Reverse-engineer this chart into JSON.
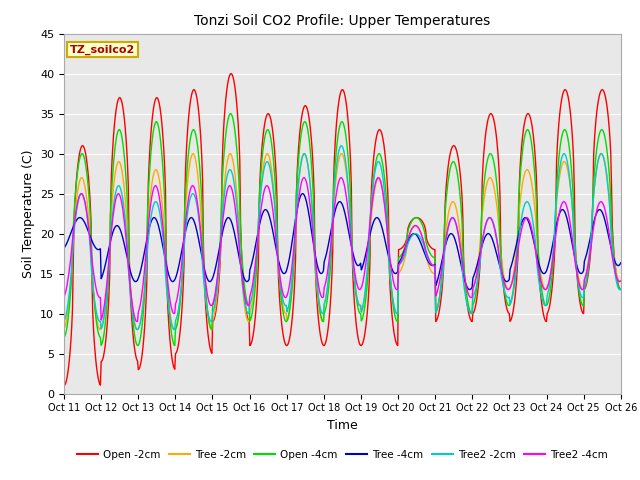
{
  "title": "Tonzi Soil CO2 Profile: Upper Temperatures",
  "xlabel": "Time",
  "ylabel": "Soil Temperature (C)",
  "ylim": [
    0,
    45
  ],
  "ytick_values": [
    0,
    5,
    10,
    15,
    20,
    25,
    30,
    35,
    40,
    45
  ],
  "xtick_labels": [
    "Oct 11",
    "Oct 12",
    "Oct 13",
    "Oct 14",
    "Oct 15",
    "Oct 16",
    "Oct 17",
    "Oct 18",
    "Oct 19",
    "Oct 20",
    "Oct 21",
    "Oct 22",
    "Oct 23",
    "Oct 24",
    "Oct 25",
    "Oct 26"
  ],
  "series_colors": {
    "Open -2cm": "#ff0000",
    "Tree -2cm": "#ffaa00",
    "Open -4cm": "#00dd00",
    "Tree -4cm": "#0000cc",
    "Tree2 -2cm": "#00cccc",
    "Tree2 -4cm": "#ff00ff"
  },
  "legend_label": "TZ_soilco2",
  "legend_bg": "#ffffcc",
  "legend_border": "#ccaa00",
  "fig_bg": "#ffffff",
  "plot_bg": "#e8e8e8",
  "grid_color": "#ffffff",
  "peaks_open2": [
    31,
    37,
    37,
    38,
    40,
    35,
    36,
    38,
    33,
    22,
    31,
    35,
    35,
    38,
    38
  ],
  "mins_open2": [
    1,
    4,
    3,
    5,
    9,
    6,
    6,
    6,
    6,
    18,
    9,
    10,
    9,
    10,
    13
  ],
  "peaks_tree2": [
    27,
    29,
    28,
    30,
    30,
    30,
    30,
    30,
    27,
    21,
    24,
    27,
    28,
    29,
    30
  ],
  "mins_tree2": [
    8,
    8,
    8,
    8,
    9,
    10,
    9,
    11,
    10,
    15,
    10,
    13,
    13,
    13,
    14
  ],
  "peaks_open4": [
    30,
    33,
    34,
    33,
    35,
    33,
    34,
    34,
    30,
    22,
    29,
    30,
    33,
    33,
    33
  ],
  "mins_open4": [
    7,
    6,
    6,
    8,
    11,
    9,
    9,
    10,
    9,
    17,
    10,
    11,
    11,
    11,
    13
  ],
  "peaks_tree4": [
    22,
    21,
    22,
    22,
    22,
    23,
    25,
    24,
    22,
    20,
    20,
    20,
    22,
    23,
    23
  ],
  "mins_tree4": [
    18,
    14,
    14,
    14,
    14,
    15,
    15,
    16,
    15,
    16,
    13,
    14,
    15,
    15,
    16
  ],
  "peaks_tree2cm": [
    25,
    26,
    24,
    25,
    28,
    29,
    30,
    31,
    29,
    20,
    22,
    22,
    24,
    30,
    30
  ],
  "mins_tree2cm": [
    9,
    8,
    8,
    9,
    10,
    11,
    10,
    11,
    10,
    16,
    10,
    12,
    11,
    12,
    13
  ],
  "peaks_tree24": [
    25,
    25,
    26,
    26,
    26,
    26,
    27,
    27,
    27,
    21,
    22,
    22,
    22,
    24,
    24
  ],
  "mins_tree24": [
    12,
    9,
    10,
    11,
    11,
    12,
    12,
    13,
    13,
    16,
    12,
    13,
    13,
    13,
    14
  ]
}
